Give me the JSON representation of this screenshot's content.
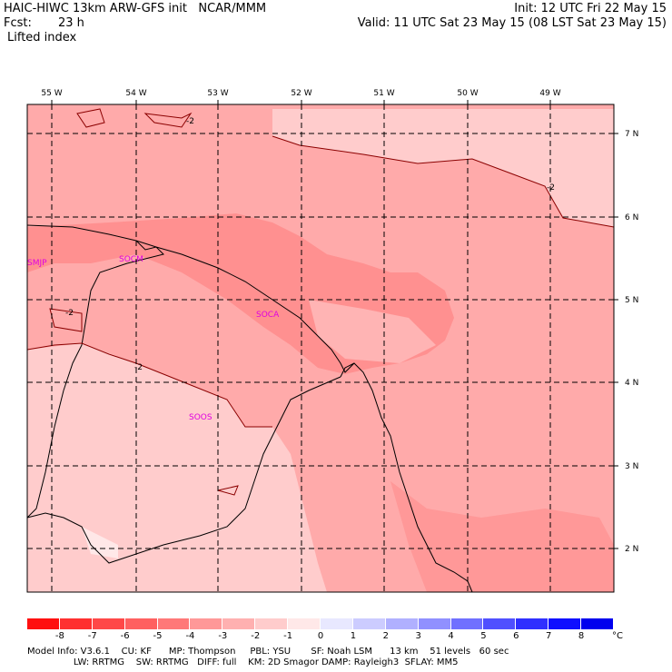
{
  "header": {
    "title": "HAIC-HIWC 13km ARW-GFS init   NCAR/MMM",
    "fcst_label": "Fcst:",
    "fcst_value": "23 h",
    "field": "Lifted index",
    "init": "Init: 12 UTC Fri 22 May 15",
    "valid": "Valid: 11 UTC Sat 23 May 15 (08 LST Sat 23 May 15)"
  },
  "map": {
    "lon_labels": [
      "55 W",
      "54 W",
      "53 W",
      "52 W",
      "51 W",
      "50 W",
      "49 W"
    ],
    "lat_labels": [
      "7 N",
      "6 N",
      "5 N",
      "4 N",
      "3 N",
      "2 N"
    ],
    "contour_labels": [
      "-2",
      "-2",
      "-2",
      "-2"
    ],
    "stations": [
      "SMJP",
      "SOCM",
      "SOCA",
      "SOOS"
    ]
  },
  "colorbar": {
    "unit": "°C",
    "labels": [
      "-8",
      "-7",
      "-6",
      "-5",
      "-4",
      "-3",
      "-2",
      "-1",
      "0",
      "1",
      "2",
      "3",
      "4",
      "5",
      "6",
      "7",
      "8"
    ],
    "colors": [
      "#ff1010",
      "#ff3030",
      "#ff4848",
      "#ff6060",
      "#ff7878",
      "#ff9898",
      "#ffb0b0",
      "#ffcccc",
      "#ffe8e8",
      "#e8e8ff",
      "#ccccff",
      "#b0b0ff",
      "#9090ff",
      "#7070ff",
      "#5050ff",
      "#3030ff",
      "#1010ff",
      "#0000ee"
    ]
  },
  "footer": {
    "line1": "Model Info: V3.6.1    CU: KF      MP: Thompson     PBL: YSU       SF: Noah LSM      13 km    51 levels   60 sec",
    "line2": "                LW: RRTMG    SW: RRTMG   DIFF: full    KM: 2D Smagor DAMP: Rayleigh3  SFLAY: MM5"
  }
}
